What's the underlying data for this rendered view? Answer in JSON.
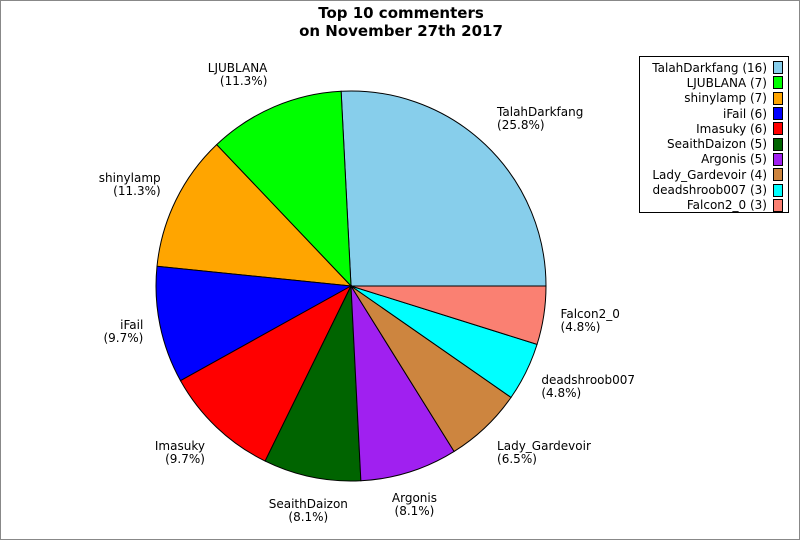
{
  "chart_data": {
    "type": "pie",
    "title": [
      "Top 10 commenters",
      "on November 27th 2017"
    ],
    "start_angle_deg": 0,
    "direction": "counterclockwise",
    "legend_position": "top-right",
    "slices": [
      {
        "name": "TalahDarkfang",
        "value": 16,
        "percent": "25.8%",
        "color": "#87ceeb"
      },
      {
        "name": "LJUBLANA",
        "value": 7,
        "percent": "11.3%",
        "color": "#00ff00"
      },
      {
        "name": "shinylamp",
        "value": 7,
        "percent": "11.3%",
        "color": "#ffa500"
      },
      {
        "name": "iFail",
        "value": 6,
        "percent": "9.7%",
        "color": "#0000ff"
      },
      {
        "name": "Imasuky",
        "value": 6,
        "percent": "9.7%",
        "color": "#ff0000"
      },
      {
        "name": "SeaithDaizon",
        "value": 5,
        "percent": "8.1%",
        "color": "#006400"
      },
      {
        "name": "Argonis",
        "value": 5,
        "percent": "8.1%",
        "color": "#a020f0"
      },
      {
        "name": "Lady_Gardevoir",
        "value": 4,
        "percent": "6.5%",
        "color": "#cd853f"
      },
      {
        "name": "deadshroob007",
        "value": 3,
        "percent": "4.8%",
        "color": "#00ffff"
      },
      {
        "name": "Falcon2_0",
        "value": 3,
        "percent": "4.8%",
        "color": "#fa8072"
      }
    ]
  }
}
